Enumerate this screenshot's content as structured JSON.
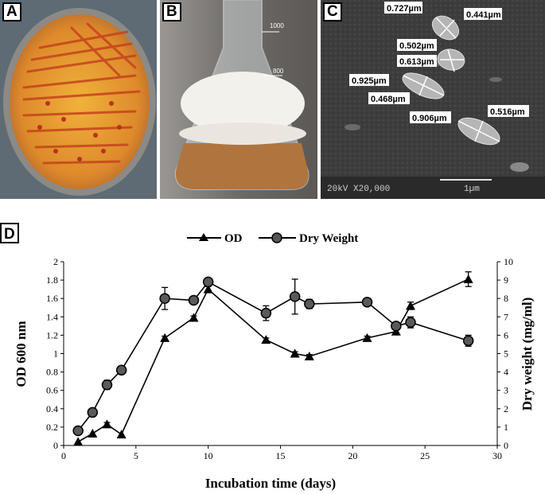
{
  "panels": {
    "a": {
      "letter": "A"
    },
    "b": {
      "letter": "B"
    },
    "c": {
      "letter": "C",
      "measurements": [
        "0.727µm",
        "0.441µm",
        "0.502µm",
        "0.613µm",
        "0.925µm",
        "0.468µm",
        "0.906µm",
        "0.516µm"
      ],
      "sem_label": "20kV   X20,000",
      "scale_label": "1µm"
    },
    "flask_marks": [
      "1000",
      "800"
    ]
  },
  "chart_data": {
    "panel_letter": "D",
    "type": "line",
    "xlabel": "Incubation time (days)",
    "ylabel_left": "OD 600 nm",
    "ylabel_right": "Dry weight (mg/ml)",
    "xlim": [
      0,
      30
    ],
    "ylim_left": [
      0,
      2
    ],
    "ylim_right": [
      0,
      10
    ],
    "x_ticks": [
      0,
      5,
      10,
      15,
      20,
      25,
      30
    ],
    "y_left_ticks": [
      "0",
      "0.2",
      "0.4",
      "0.6",
      "0.8",
      "1",
      "1.2",
      "1.4",
      "1.6",
      "1.8",
      "2"
    ],
    "y_right_ticks": [
      "0",
      "1",
      "2",
      "3",
      "4",
      "5",
      "6",
      "7",
      "8",
      "9",
      "10"
    ],
    "legend_position": "top-center",
    "grid": false,
    "series": [
      {
        "name": "OD",
        "axis": "left",
        "marker": "triangle",
        "x": [
          1,
          2,
          3,
          4,
          7,
          9,
          10,
          14,
          16,
          17,
          21,
          23,
          24,
          28
        ],
        "y": [
          0.04,
          0.13,
          0.23,
          0.12,
          1.17,
          1.39,
          1.7,
          1.15,
          1.0,
          0.97,
          1.17,
          1.24,
          1.52,
          1.81
        ],
        "err": [
          0,
          0,
          0.02,
          0,
          0.02,
          0.02,
          0.03,
          0.02,
          0.02,
          0.02,
          0.02,
          0.02,
          0.04,
          0.08
        ]
      },
      {
        "name": "Dry Weight",
        "axis": "right",
        "marker": "circle",
        "x": [
          1,
          2,
          3,
          4,
          7,
          9,
          10,
          14,
          16,
          17,
          21,
          23,
          24,
          28
        ],
        "y": [
          0.8,
          1.8,
          3.3,
          4.1,
          8.0,
          7.9,
          8.9,
          7.2,
          8.1,
          7.7,
          7.8,
          6.5,
          6.7,
          5.7
        ],
        "err": [
          0,
          0,
          0.25,
          0,
          0.6,
          0,
          0.15,
          0.4,
          0.95,
          0.25,
          0,
          0,
          0.3,
          0.3
        ]
      }
    ]
  }
}
